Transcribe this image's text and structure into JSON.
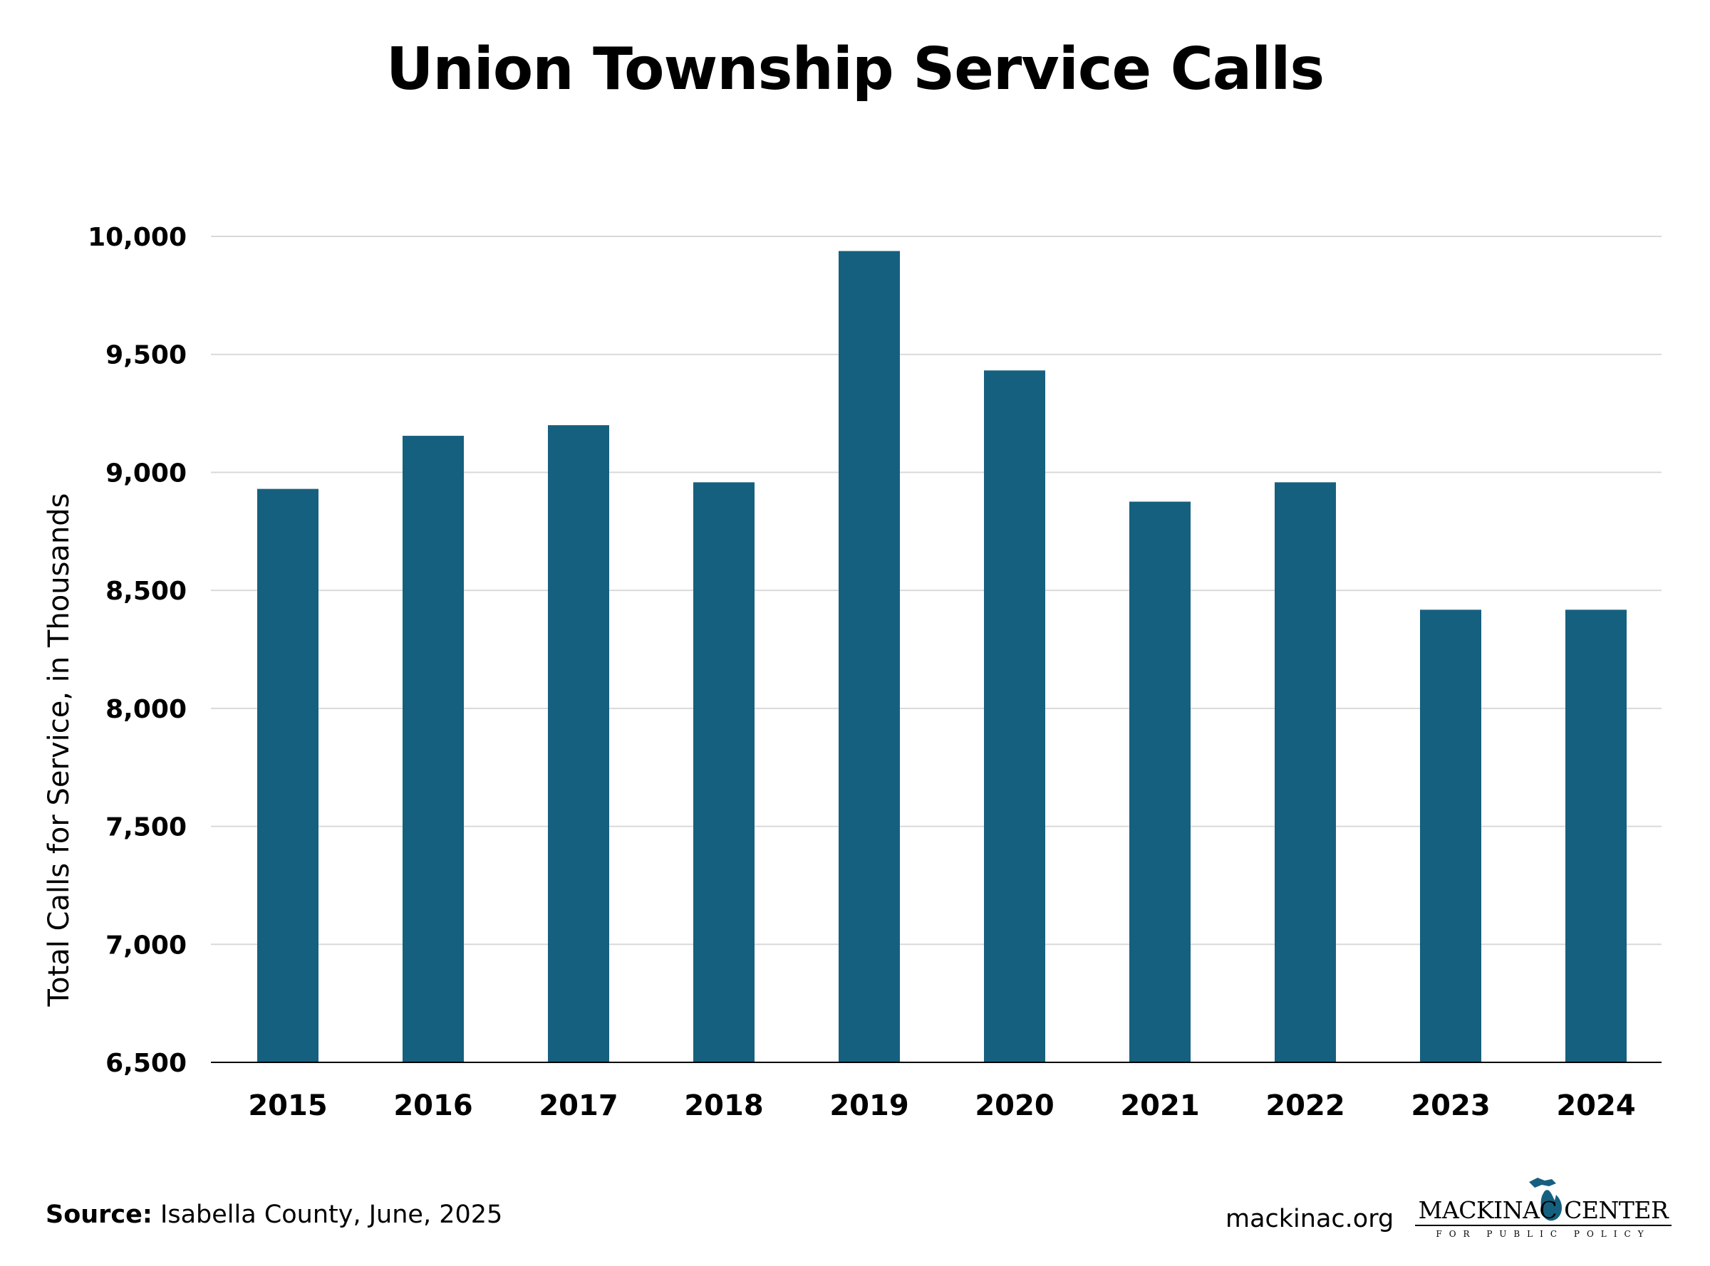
{
  "chart_data": {
    "type": "bar",
    "title": "Union Township Service Calls",
    "xlabel": "",
    "ylabel": "Total Calls for Service, in Thousands",
    "categories": [
      "2015",
      "2016",
      "2017",
      "2018",
      "2019",
      "2020",
      "2021",
      "2022",
      "2023",
      "2024"
    ],
    "values": [
      8930,
      9155,
      9200,
      8958,
      9938,
      9432,
      8876,
      8958,
      8418,
      8418
    ],
    "ylim": [
      6500,
      10000
    ],
    "yticks": [
      "6,500",
      "7,000",
      "7,500",
      "8,000",
      "8,500",
      "9,000",
      "9,500",
      "10,000"
    ],
    "ytick_values": [
      6500,
      7000,
      7500,
      8000,
      8500,
      9000,
      9500,
      10000
    ],
    "grid": true,
    "legend": "none",
    "bar_color": "#16607f",
    "gridline_color": "#d9d9d9"
  },
  "footer": {
    "source_label": "Source:",
    "source_text": " Isabella County, June, 2025",
    "site": "mackinac.org"
  },
  "logo": {
    "name": "MACKINAC CENTER",
    "tagline": "FOR PUBLIC POLICY",
    "mark_icon": "michigan-map-icon",
    "mark_color": "#16607f"
  }
}
